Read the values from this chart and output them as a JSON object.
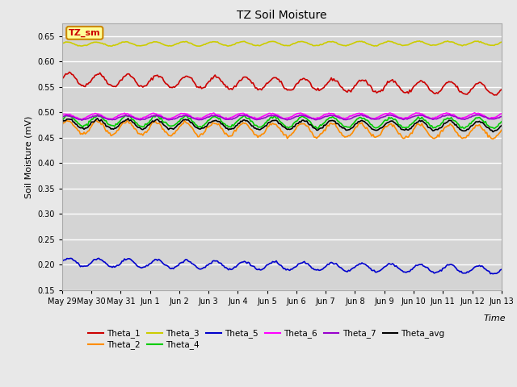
{
  "title": "TZ Soil Moisture",
  "ylabel": "Soil Moisture (mV)",
  "xlabel": "Time",
  "ylim": [
    0.15,
    0.675
  ],
  "yticks": [
    0.15,
    0.2,
    0.25,
    0.3,
    0.35,
    0.4,
    0.45,
    0.5,
    0.55,
    0.6,
    0.65
  ],
  "background_color": "#e8e8e8",
  "plot_bg_color": "#d4d4d4",
  "series_order": [
    "Theta_1",
    "Theta_2",
    "Theta_3",
    "Theta_4",
    "Theta_5",
    "Theta_6",
    "Theta_7",
    "Theta_avg"
  ],
  "series": {
    "Theta_1": {
      "color": "#cc0000",
      "base": 0.565,
      "trend": -0.0013,
      "amp": 0.012,
      "period": 1.0,
      "phase": 0.0
    },
    "Theta_2": {
      "color": "#ff8c00",
      "base": 0.47,
      "trend": -0.0006,
      "amp": 0.013,
      "period": 1.0,
      "phase": 0.3
    },
    "Theta_3": {
      "color": "#cccc00",
      "base": 0.634,
      "trend": 0.0001,
      "amp": 0.004,
      "period": 1.0,
      "phase": 0.5
    },
    "Theta_4": {
      "color": "#00cc00",
      "base": 0.483,
      "trend": -0.0003,
      "amp": 0.01,
      "period": 1.0,
      "phase": 0.2
    },
    "Theta_5": {
      "color": "#0000cc",
      "base": 0.205,
      "trend": -0.001,
      "amp": 0.008,
      "period": 1.0,
      "phase": 0.1
    },
    "Theta_6": {
      "color": "#ff00ff",
      "base": 0.492,
      "trend": 0.0001,
      "amp": 0.005,
      "period": 1.0,
      "phase": 0.7
    },
    "Theta_7": {
      "color": "#9900cc",
      "base": 0.489,
      "trend": 0.0001,
      "amp": 0.004,
      "period": 1.0,
      "phase": 0.4
    },
    "Theta_avg": {
      "color": "#000000",
      "base": 0.477,
      "trend": -0.0003,
      "amp": 0.009,
      "period": 1.0,
      "phase": 0.15
    }
  },
  "xtick_labels": [
    "May 29",
    "May 30",
    "May 31",
    "Jun 1",
    "Jun 2",
    "Jun 3",
    "Jun 4",
    "Jun 5",
    "Jun 6",
    "Jun 7",
    "Jun 8",
    "Jun 9",
    "Jun 10",
    "Jun 11",
    "Jun 12",
    "Jun 13"
  ],
  "legend_box_label": "TZ_sm",
  "legend_box_color": "#ffff99",
  "legend_box_border": "#cc8800",
  "legend_row1": [
    "Theta_1",
    "Theta_2",
    "Theta_3",
    "Theta_4",
    "Theta_5",
    "Theta_6"
  ],
  "legend_row2": [
    "Theta_7",
    "Theta_avg"
  ]
}
